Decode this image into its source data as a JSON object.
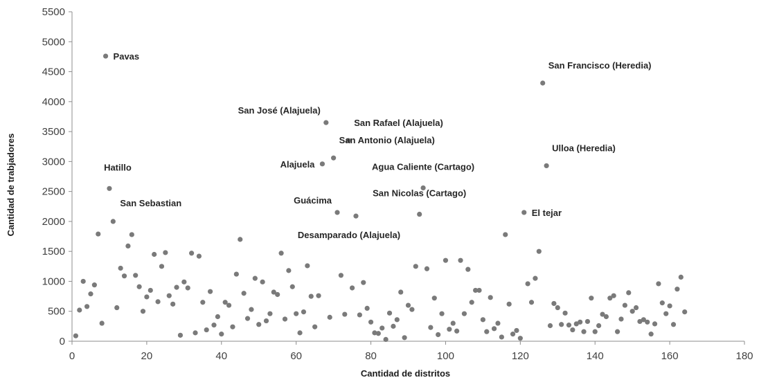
{
  "chart_data": {
    "type": "scatter",
    "title": "",
    "xlabel": "Cantidad de distritos",
    "ylabel": "Cantidad de trabjadores",
    "xlim": [
      0,
      180
    ],
    "ylim": [
      0,
      5500
    ],
    "xticks": [
      0,
      20,
      40,
      60,
      80,
      100,
      120,
      140,
      160,
      180
    ],
    "yticks": [
      0,
      500,
      1000,
      1500,
      2000,
      2500,
      3000,
      3500,
      4000,
      4500,
      5000,
      5500
    ],
    "grid": false,
    "legend": "none",
    "point_color": "#7a7a7a",
    "annotations": [
      {
        "text": "Pavas",
        "x": 9,
        "y": 4760,
        "anchor": "right"
      },
      {
        "text": "Hatillo",
        "x": 10,
        "y": 2550,
        "anchor": "above"
      },
      {
        "text": "San Sebastian",
        "x": 11,
        "y": 2000,
        "anchor": "above-right"
      },
      {
        "text": "San José (Alajuela)",
        "x": 68,
        "y": 3650,
        "anchor": "above-left"
      },
      {
        "text": "San Rafael (Alajuela)",
        "x": 74,
        "y": 3350,
        "anchor": "above-right"
      },
      {
        "text": "San Antonio (Alajuela)",
        "x": 70,
        "y": 3060,
        "anchor": "above-right"
      },
      {
        "text": "Alajuela",
        "x": 67,
        "y": 2960,
        "anchor": "left"
      },
      {
        "text": "Guácima",
        "x": 71,
        "y": 2150,
        "anchor": "above-left"
      },
      {
        "text": "Desamparado  (Alajuela)",
        "x": 76,
        "y": 2090,
        "anchor": "below"
      },
      {
        "text": "Agua Caliente  (Cartago)",
        "x": 94,
        "y": 2560,
        "anchor": "above"
      },
      {
        "text": "San Nicolas (Cartago)",
        "x": 93,
        "y": 2120,
        "anchor": "above"
      },
      {
        "text": "San Francisco (Heredia)",
        "x": 126,
        "y": 4310,
        "anchor": "above-right"
      },
      {
        "text": "Ulloa (Heredia)",
        "x": 127,
        "y": 2930,
        "anchor": "above-right"
      },
      {
        "text": "El tejar",
        "x": 121,
        "y": 2150,
        "anchor": "right"
      }
    ],
    "points": [
      [
        1,
        90
      ],
      [
        2,
        520
      ],
      [
        3,
        1000
      ],
      [
        4,
        580
      ],
      [
        5,
        790
      ],
      [
        6,
        940
      ],
      [
        7,
        1790
      ],
      [
        8,
        300
      ],
      [
        9,
        4760
      ],
      [
        10,
        2550
      ],
      [
        11,
        2000
      ],
      [
        12,
        560
      ],
      [
        13,
        1220
      ],
      [
        14,
        1090
      ],
      [
        15,
        1590
      ],
      [
        16,
        1780
      ],
      [
        17,
        1100
      ],
      [
        18,
        910
      ],
      [
        19,
        500
      ],
      [
        20,
        740
      ],
      [
        21,
        850
      ],
      [
        22,
        1450
      ],
      [
        23,
        660
      ],
      [
        24,
        1250
      ],
      [
        25,
        1480
      ],
      [
        26,
        760
      ],
      [
        27,
        620
      ],
      [
        28,
        900
      ],
      [
        29,
        100
      ],
      [
        30,
        990
      ],
      [
        31,
        890
      ],
      [
        32,
        1470
      ],
      [
        33,
        140
      ],
      [
        34,
        1420
      ],
      [
        35,
        650
      ],
      [
        36,
        190
      ],
      [
        37,
        830
      ],
      [
        38,
        270
      ],
      [
        39,
        410
      ],
      [
        40,
        120
      ],
      [
        41,
        650
      ],
      [
        42,
        600
      ],
      [
        43,
        240
      ],
      [
        44,
        1120
      ],
      [
        45,
        1700
      ],
      [
        46,
        800
      ],
      [
        47,
        380
      ],
      [
        48,
        530
      ],
      [
        49,
        1050
      ],
      [
        50,
        280
      ],
      [
        51,
        990
      ],
      [
        52,
        340
      ],
      [
        53,
        460
      ],
      [
        54,
        820
      ],
      [
        55,
        780
      ],
      [
        56,
        1470
      ],
      [
        57,
        370
      ],
      [
        58,
        1180
      ],
      [
        59,
        910
      ],
      [
        60,
        460
      ],
      [
        61,
        140
      ],
      [
        62,
        490
      ],
      [
        63,
        1260
      ],
      [
        64,
        750
      ],
      [
        65,
        240
      ],
      [
        66,
        760
      ],
      [
        67,
        2960
      ],
      [
        68,
        3650
      ],
      [
        69,
        400
      ],
      [
        70,
        3060
      ],
      [
        71,
        2150
      ],
      [
        72,
        1100
      ],
      [
        73,
        450
      ],
      [
        74,
        3350
      ],
      [
        75,
        890
      ],
      [
        76,
        2090
      ],
      [
        77,
        440
      ],
      [
        78,
        980
      ],
      [
        79,
        550
      ],
      [
        80,
        320
      ],
      [
        81,
        140
      ],
      [
        82,
        130
      ],
      [
        83,
        220
      ],
      [
        84,
        30
      ],
      [
        85,
        470
      ],
      [
        86,
        250
      ],
      [
        87,
        360
      ],
      [
        88,
        820
      ],
      [
        89,
        60
      ],
      [
        90,
        600
      ],
      [
        91,
        530
      ],
      [
        92,
        1250
      ],
      [
        93,
        2120
      ],
      [
        94,
        2560
      ],
      [
        95,
        1210
      ],
      [
        96,
        230
      ],
      [
        97,
        720
      ],
      [
        98,
        110
      ],
      [
        99,
        460
      ],
      [
        100,
        1350
      ],
      [
        101,
        200
      ],
      [
        102,
        300
      ],
      [
        103,
        170
      ],
      [
        104,
        1350
      ],
      [
        105,
        460
      ],
      [
        106,
        1200
      ],
      [
        107,
        650
      ],
      [
        108,
        850
      ],
      [
        109,
        850
      ],
      [
        110,
        360
      ],
      [
        111,
        160
      ],
      [
        112,
        730
      ],
      [
        113,
        210
      ],
      [
        114,
        300
      ],
      [
        115,
        70
      ],
      [
        116,
        1780
      ],
      [
        117,
        620
      ],
      [
        118,
        120
      ],
      [
        119,
        180
      ],
      [
        120,
        50
      ],
      [
        121,
        2150
      ],
      [
        122,
        960
      ],
      [
        123,
        650
      ],
      [
        124,
        1050
      ],
      [
        125,
        1500
      ],
      [
        126,
        4310
      ],
      [
        127,
        2930
      ],
      [
        128,
        260
      ],
      [
        129,
        630
      ],
      [
        130,
        560
      ],
      [
        131,
        280
      ],
      [
        132,
        470
      ],
      [
        133,
        270
      ],
      [
        134,
        190
      ],
      [
        135,
        290
      ],
      [
        136,
        320
      ],
      [
        137,
        160
      ],
      [
        138,
        330
      ],
      [
        139,
        720
      ],
      [
        140,
        160
      ],
      [
        141,
        260
      ],
      [
        142,
        450
      ],
      [
        143,
        410
      ],
      [
        144,
        720
      ],
      [
        145,
        760
      ],
      [
        146,
        160
      ],
      [
        147,
        370
      ],
      [
        148,
        600
      ],
      [
        149,
        810
      ],
      [
        150,
        500
      ],
      [
        151,
        560
      ],
      [
        152,
        330
      ],
      [
        153,
        360
      ],
      [
        154,
        320
      ],
      [
        155,
        120
      ],
      [
        156,
        290
      ],
      [
        157,
        960
      ],
      [
        158,
        640
      ],
      [
        159,
        460
      ],
      [
        160,
        590
      ],
      [
        161,
        280
      ],
      [
        162,
        870
      ],
      [
        163,
        1070
      ],
      [
        164,
        490
      ]
    ]
  }
}
